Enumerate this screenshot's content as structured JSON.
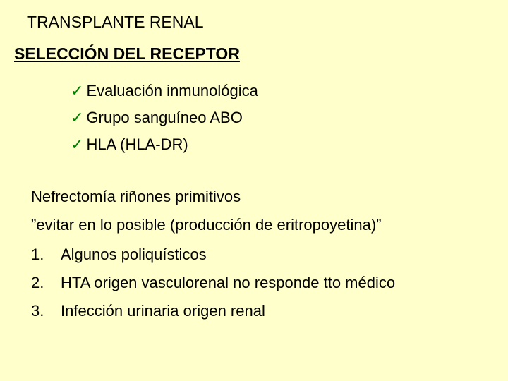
{
  "slide": {
    "background_color": "#ffffcc",
    "text_color": "#000000",
    "check_color": "#008000",
    "font_family": "Verdana",
    "title_fontsize": 23,
    "body_fontsize": 22,
    "title": "TRANSPLANTE RENAL",
    "subtitle": "SELECCIÓN DEL RECEPTOR",
    "checklist": [
      "Evaluación inmunológica",
      "Grupo sanguíneo ABO",
      "HLA (HLA-DR)"
    ],
    "section_heading": "Nefrectomía riñones primitivos",
    "note": "”evitar en lo posible   (producción de eritropoyetina)”",
    "numbered_list": [
      "Algunos poliquísticos",
      "HTA origen vasculorenal no responde tto médico",
      "Infección urinaria origen renal"
    ]
  }
}
